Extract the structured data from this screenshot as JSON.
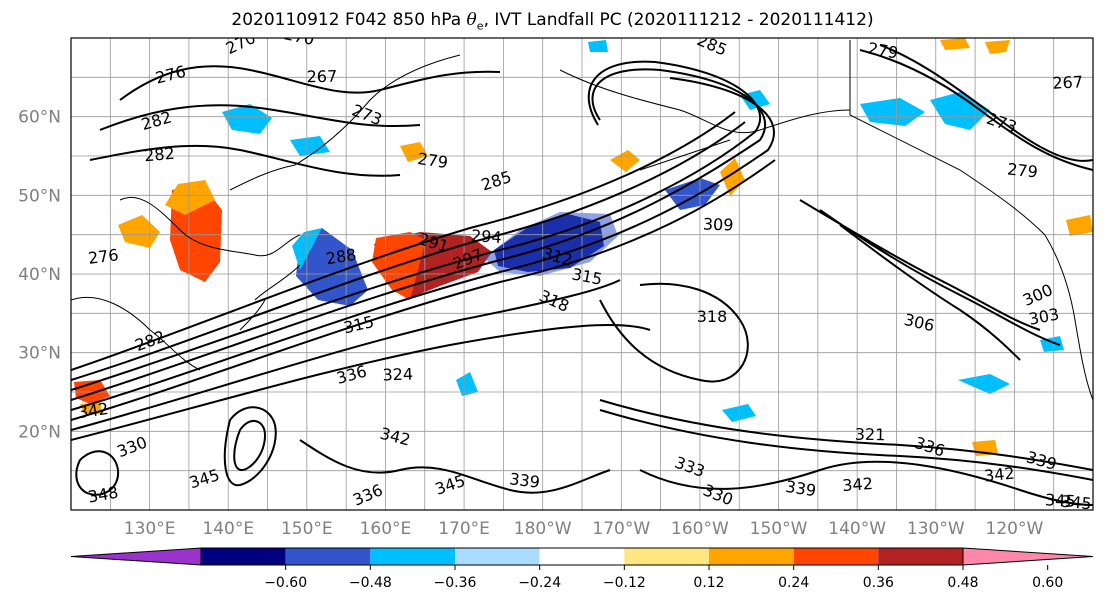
{
  "title": {
    "prefix": "2020110912 F042 850 hPa ",
    "symbol": "θ",
    "subscript": "e",
    "suffix": ", IVT Landfall PC (2020111212 - 2020111412)"
  },
  "map": {
    "projection": "PlateCarree",
    "lon_range": [
      120,
      250
    ],
    "lat_range": [
      10,
      70
    ],
    "lat_ticks": [
      "60°N",
      "50°N",
      "40°N",
      "30°N",
      "20°N"
    ],
    "lat_tick_values": [
      60,
      50,
      40,
      30,
      20
    ],
    "lon_ticks": [
      "130°E",
      "140°E",
      "150°E",
      "160°E",
      "170°E",
      "180°W",
      "170°W",
      "160°W",
      "150°W",
      "140°W",
      "130°W",
      "120°W"
    ],
    "lon_tick_values": [
      130,
      140,
      150,
      160,
      170,
      180,
      190,
      200,
      210,
      220,
      230,
      240
    ],
    "gridlines": true,
    "tick_label_color": "#808080"
  },
  "contour_labels": [
    "270",
    "270",
    "267",
    "276",
    "285",
    "279",
    "267",
    "282",
    "273",
    "279",
    "282",
    "285",
    "273",
    "279",
    "276",
    "282",
    "291",
    "294",
    "288",
    "297",
    "312",
    "309",
    "303",
    "300",
    "306",
    "318",
    "315",
    "318",
    "315",
    "324",
    "336",
    "330",
    "339",
    "342",
    "345",
    "333",
    "339",
    "342",
    "345",
    "336",
    "345",
    "342",
    "330",
    "339",
    "345",
    "348",
    "336",
    "342",
    "321"
  ],
  "colorbar": {
    "colors": [
      "#9933cc",
      "#000080",
      "#3355cc",
      "#00bfff",
      "#aadcff",
      "#ffffff",
      "#ffe680",
      "#ffa500",
      "#ff4500",
      "#b22222",
      "#ff88aa"
    ],
    "tick_labels": [
      "−0.60",
      "−0.48",
      "−0.36",
      "−0.24",
      "−0.12",
      "0.12",
      "0.24",
      "0.36",
      "0.48",
      "0.60"
    ],
    "tick_values": [
      -0.6,
      -0.48,
      -0.36,
      -0.24,
      -0.12,
      0.12,
      0.24,
      0.36,
      0.48,
      0.6
    ],
    "extend": "both"
  }
}
